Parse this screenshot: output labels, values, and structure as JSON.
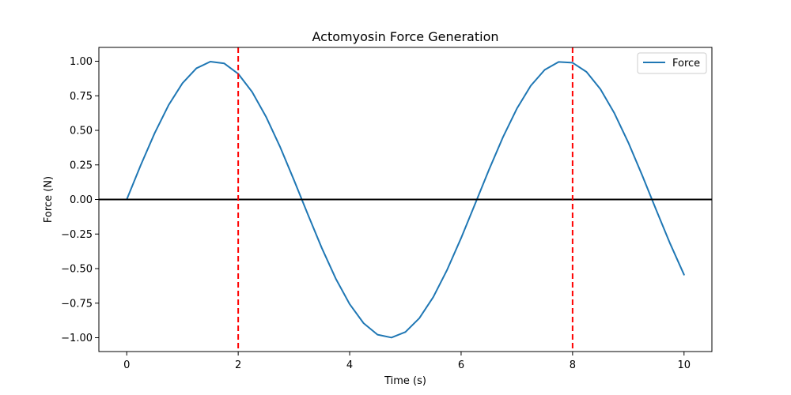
{
  "chart_data": {
    "type": "line",
    "title": "Actomyosin Force Generation",
    "xlabel": "Time (s)",
    "ylabel": "Force (N)",
    "xlim": [
      -0.5,
      10.5
    ],
    "ylim": [
      -1.1,
      1.1
    ],
    "x_ticks": [
      0,
      2,
      4,
      6,
      8,
      10
    ],
    "x_tick_labels": [
      "0",
      "2",
      "4",
      "6",
      "8",
      "10"
    ],
    "y_ticks": [
      -1.0,
      -0.75,
      -0.5,
      -0.25,
      0.0,
      0.25,
      0.5,
      0.75,
      1.0
    ],
    "y_tick_labels": [
      "−1.00",
      "−0.75",
      "−0.50",
      "−0.25",
      "0.00",
      "0.25",
      "0.50",
      "0.75",
      "1.00"
    ],
    "grid": false,
    "legend_position": "top-right",
    "series": [
      {
        "name": "Force",
        "color": "#1f77b4",
        "x": [
          0,
          0.25,
          0.5,
          0.75,
          1,
          1.25,
          1.5,
          1.75,
          2,
          2.25,
          2.5,
          2.75,
          3,
          3.25,
          3.5,
          3.75,
          4,
          4.25,
          4.5,
          4.75,
          5,
          5.25,
          5.5,
          5.75,
          6,
          6.25,
          6.5,
          6.75,
          7,
          7.25,
          7.5,
          7.75,
          8,
          8.25,
          8.5,
          8.75,
          9,
          9.25,
          9.5,
          9.75,
          10
        ],
        "y": [
          0.0,
          0.247,
          0.479,
          0.682,
          0.841,
          0.949,
          0.997,
          0.984,
          0.909,
          0.778,
          0.598,
          0.382,
          0.141,
          -0.108,
          -0.351,
          -0.572,
          -0.757,
          -0.895,
          -0.978,
          -0.999,
          -0.959,
          -0.859,
          -0.706,
          -0.508,
          -0.279,
          -0.033,
          0.215,
          0.45,
          0.657,
          0.823,
          0.938,
          0.995,
          0.989,
          0.923,
          0.798,
          0.624,
          0.412,
          0.174,
          -0.075,
          -0.319,
          -0.544
        ]
      }
    ],
    "hlines": [
      {
        "y": 0,
        "color": "#000000",
        "style": "solid"
      }
    ],
    "vlines": [
      {
        "x": 2,
        "color": "#ff0000",
        "style": "dashed"
      },
      {
        "x": 8,
        "color": "#ff0000",
        "style": "dashed"
      }
    ]
  }
}
